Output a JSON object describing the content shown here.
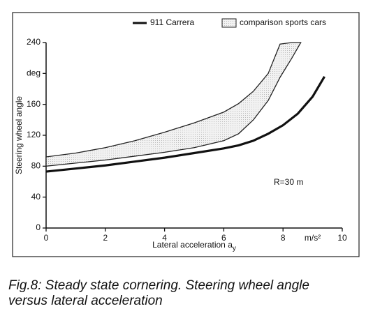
{
  "chart_data": {
    "type": "line",
    "series": [
      {
        "name": "911 Carrera",
        "type": "line",
        "color": "#111111",
        "x": [
          0,
          1,
          2,
          3,
          4,
          5,
          6,
          6.5,
          7,
          7.5,
          8,
          8.5,
          9,
          9.4
        ],
        "values": [
          73,
          77,
          81,
          86,
          91,
          97,
          103,
          107,
          113,
          122,
          133,
          148,
          170,
          196
        ]
      },
      {
        "name": "comparison sports cars",
        "type": "band",
        "color": "#222222",
        "x": [
          0,
          1,
          2,
          3,
          4,
          5,
          6,
          6.5,
          7,
          7.5,
          7.9,
          8.3,
          8.6
        ],
        "upper": [
          92,
          97,
          104,
          113,
          124,
          136,
          150,
          161,
          177,
          200,
          238,
          240,
          240
        ],
        "lower": [
          80,
          84,
          88,
          93,
          98,
          104,
          113,
          122,
          140,
          165,
          195,
          220,
          240
        ]
      }
    ],
    "xlim": [
      0,
      10
    ],
    "ylim": [
      0,
      240
    ],
    "xticks": [
      0,
      2,
      4,
      6,
      8,
      {
        "value": 9,
        "label": "m/s²"
      },
      10
    ],
    "yticks": [
      0,
      40,
      80,
      120,
      160,
      {
        "value": 200,
        "label": "deg"
      },
      240
    ],
    "ylabel": "Steering wheel angle",
    "xlabel": {
      "text": "Lateral acceleration a",
      "subscript": "y"
    },
    "annotation": "R=30 m",
    "caption": [
      "Fig.8: Steady state cornering. Steering wheel angle",
      "versus lateral acceleration"
    ]
  }
}
